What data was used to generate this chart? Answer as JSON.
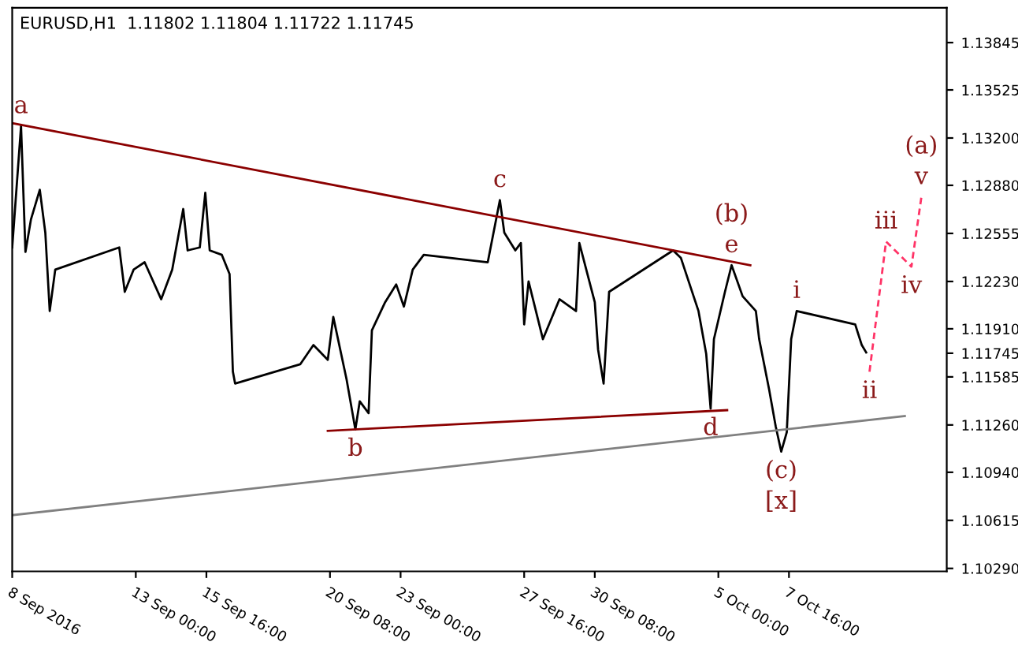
{
  "chart_data": {
    "type": "line",
    "title": "EURUSD,H1  1.11802 1.11804 1.11722 1.11745",
    "series": [
      {
        "color": "#000000",
        "line_style": "solid",
        "x": [
          "2016-09-08T08:00",
          "2016-09-08T12:00",
          "2016-09-08T16:00",
          "2016-09-08T20:00",
          "2016-09-09T01:00",
          "2016-09-09T09:00",
          "2016-09-09T14:00",
          "2016-09-09T18:00",
          "2016-09-09T23:00",
          "2016-09-12T09:00",
          "2016-09-12T14:00",
          "2016-09-12T22:00",
          "2016-09-13T08:00",
          "2016-09-13T23:00",
          "2016-09-14T09:00",
          "2016-09-14T19:00",
          "2016-09-14T23:00",
          "2016-09-15T10:00",
          "2016-09-15T15:00",
          "2016-09-15T19:00",
          "2016-09-16T06:00",
          "2016-09-16T13:00",
          "2016-09-16T16:00",
          "2016-09-16T18:00",
          "2016-09-19T05:00",
          "2016-09-19T17:00",
          "2016-09-20T06:00",
          "2016-09-20T11:00",
          "2016-09-20T23:00",
          "2016-09-21T07:00",
          "2016-09-21T11:00",
          "2016-09-21T19:00",
          "2016-09-21T22:00",
          "2016-09-22T10:00",
          "2016-09-22T20:00",
          "2016-09-23T03:00",
          "2016-09-23T11:00",
          "2016-09-23T21:00",
          "2016-09-26T07:00",
          "2016-09-26T18:00",
          "2016-09-26T22:00",
          "2016-09-27T08:00",
          "2016-09-27T13:00",
          "2016-09-27T16:00",
          "2016-09-27T20:00",
          "2016-09-28T09:00",
          "2016-09-29T00:00",
          "2016-09-29T15:00",
          "2016-09-29T18:00",
          "2016-09-30T08:00",
          "2016-09-30T11:00",
          "2016-09-30T16:00",
          "2016-09-30T21:00",
          "2016-10-03T07:00",
          "2016-10-03T14:00",
          "2016-10-04T06:00",
          "2016-10-04T13:00",
          "2016-10-04T17:00",
          "2016-10-04T20:00",
          "2016-10-05T06:00",
          "2016-10-05T12:00",
          "2016-10-05T22:00",
          "2016-10-06T10:00",
          "2016-10-06T13:00",
          "2016-10-06T22:00",
          "2016-10-07T04:00",
          "2016-10-07T09:00",
          "2016-10-07T14:00",
          "2016-10-07T18:00",
          "2016-10-07T23:00",
          "2016-10-10T04:00",
          "2016-10-10T10:00",
          "2016-10-10T14:00"
        ],
        "values": [
          1.1246,
          1.1287,
          1.1328,
          1.1243,
          1.1265,
          1.1285,
          1.1256,
          1.1203,
          1.1231,
          1.1246,
          1.1216,
          1.1231,
          1.1236,
          1.1211,
          1.1231,
          1.1272,
          1.1244,
          1.1246,
          1.1283,
          1.1244,
          1.1241,
          1.1228,
          1.1162,
          1.1154,
          1.1167,
          1.118,
          1.117,
          1.1199,
          1.1157,
          1.1123,
          1.1142,
          1.1134,
          1.119,
          1.1209,
          1.1221,
          1.1206,
          1.1231,
          1.1241,
          1.1236,
          1.1278,
          1.1256,
          1.1244,
          1.1249,
          1.1194,
          1.1223,
          1.1184,
          1.1211,
          1.1203,
          1.1249,
          1.1209,
          1.1177,
          1.1154,
          1.1216,
          1.1244,
          1.1239,
          1.1203,
          1.1174,
          1.1137,
          1.1184,
          1.1216,
          1.1234,
          1.1213,
          1.1203,
          1.1184,
          1.115,
          1.1125,
          1.1108,
          1.1121,
          1.1184,
          1.1203,
          1.1194,
          1.118,
          1.1175
        ]
      },
      {
        "color": "#8b0000",
        "line_style": "solid",
        "x": [
          "2016-09-08T08:00",
          "2016-10-06T05:00"
        ],
        "values": [
          1.133,
          1.1234
        ]
      },
      {
        "color": "#8b0000",
        "line_style": "solid",
        "x": [
          "2016-09-20T06:00",
          "2016-10-05T08:00"
        ],
        "values": [
          1.1122,
          1.1136
        ]
      },
      {
        "color": "#808080",
        "line_style": "solid",
        "x": [
          "2016-09-08T08:00",
          "2016-10-12T01:00"
        ],
        "values": [
          1.1065,
          1.1132
        ]
      },
      {
        "color": "#ff3366",
        "line_style": "dashed",
        "x": [
          "2016-10-10T17:00",
          "2016-10-11T08:00",
          "2016-10-12T07:00",
          "2016-10-12T16:00"
        ],
        "values": [
          1.1162,
          1.125,
          1.1233,
          1.128
        ]
      }
    ],
    "annotations": [
      {
        "text": "a",
        "x": "2016-09-08T16:00",
        "y": 1.1328
      },
      {
        "text": "b",
        "x": "2016-09-21T07:00",
        "y": 1.1123
      },
      {
        "text": "c",
        "x": "2016-09-26T18:00",
        "y": 1.1278
      },
      {
        "text": "d",
        "x": "2016-10-04T17:00",
        "y": 1.1137
      },
      {
        "text": "e",
        "x": "2016-10-05T12:00",
        "y": 1.1234
      },
      {
        "text": "(b)",
        "x": "2016-10-05T12:00",
        "y": 1.1234
      },
      {
        "text": "(c)",
        "x": "2016-10-07T09:00",
        "y": 1.1108
      },
      {
        "text": "[x]",
        "x": "2016-10-07T09:00",
        "y": 1.1108
      },
      {
        "text": "i",
        "x": "2016-10-07T23:00",
        "y": 1.1203
      },
      {
        "text": "ii",
        "x": "2016-10-10T17:00",
        "y": 1.1162
      },
      {
        "text": "iii",
        "x": "2016-10-11T08:00",
        "y": 1.125
      },
      {
        "text": "iv",
        "x": "2016-10-12T07:00",
        "y": 1.1233
      },
      {
        "text": "v",
        "x": "2016-10-12T16:00",
        "y": 1.128
      },
      {
        "text": "(a)",
        "x": "2016-10-12T16:00",
        "y": 1.128
      }
    ],
    "xlim": [
      "2016-09-08T08:00",
      "2016-10-13T15:00"
    ],
    "xticks": [
      {
        "value": "2016-09-08T08:00",
        "label": "8 Sep 2016"
      },
      {
        "value": "2016-09-13T00:00",
        "label": "13 Sep 00:00"
      },
      {
        "value": "2016-09-15T16:00",
        "label": "15 Sep 16:00"
      },
      {
        "value": "2016-09-20T08:00",
        "label": "20 Sep 08:00"
      },
      {
        "value": "2016-09-23T00:00",
        "label": "23 Sep 00:00"
      },
      {
        "value": "2016-09-27T16:00",
        "label": "27 Sep 16:00"
      },
      {
        "value": "2016-09-30T08:00",
        "label": "30 Sep 08:00"
      },
      {
        "value": "2016-10-05T00:00",
        "label": "5 Oct 00:00"
      },
      {
        "value": "2016-10-07T16:00",
        "label": "7 Oct 16:00"
      }
    ],
    "ylim": [
      1.1027,
      1.1408
    ],
    "yticks": [
      {
        "value": 1.1029,
        "label": "1.10290"
      },
      {
        "value": 1.10615,
        "label": "1.10615"
      },
      {
        "value": 1.1094,
        "label": "1.10940"
      },
      {
        "value": 1.1126,
        "label": "1.11260"
      },
      {
        "value": 1.11585,
        "label": "1.11585"
      },
      {
        "value": 1.11745,
        "label": "1.11745"
      },
      {
        "value": 1.1191,
        "label": "1.11910"
      },
      {
        "value": 1.1223,
        "label": "1.12230"
      },
      {
        "value": 1.12555,
        "label": "1.12555"
      },
      {
        "value": 1.1288,
        "label": "1.12880"
      },
      {
        "value": 1.132,
        "label": "1.13200"
      },
      {
        "value": 1.13525,
        "label": "1.13525"
      },
      {
        "value": 1.13845,
        "label": "1.13845"
      }
    ],
    "grid": false
  }
}
